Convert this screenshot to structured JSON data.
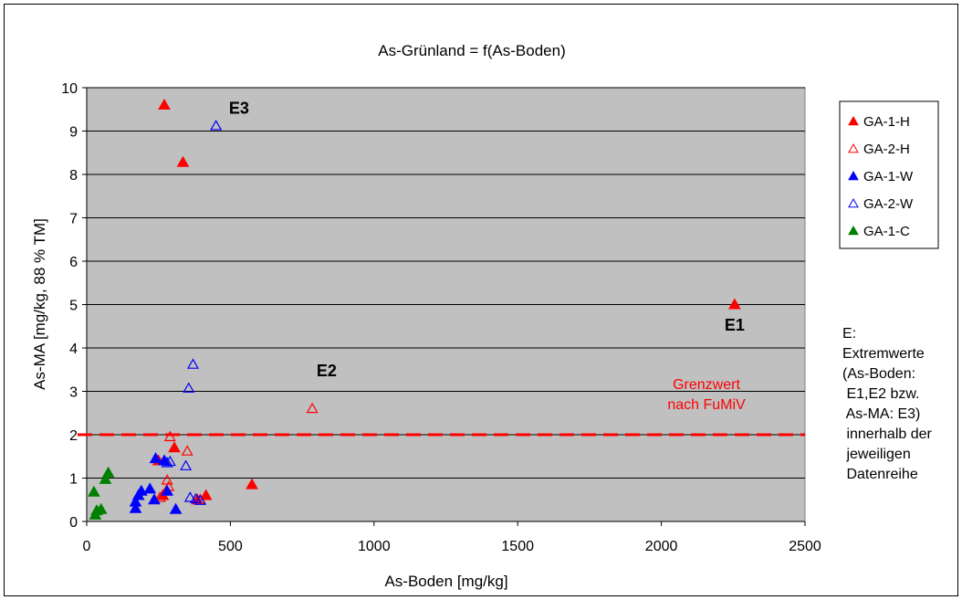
{
  "chart_data": {
    "type": "scatter",
    "title": "As-Grünland = f(As-Boden)",
    "xlabel": "As-Boden [mg/kg]",
    "ylabel": "As-MA [mg/kg, 88 % TM]",
    "xlim": [
      0,
      2500
    ],
    "ylim": [
      0,
      10
    ],
    "xticks": [
      0,
      500,
      1000,
      1500,
      2000,
      2500
    ],
    "yticks": [
      0,
      1,
      2,
      3,
      4,
      5,
      6,
      7,
      8,
      9,
      10
    ],
    "grid": "horizontal",
    "plot_background": "#c0c0c0",
    "legend_position": "right",
    "series": [
      {
        "name": "GA-1-H",
        "color": "#ff0000",
        "marker": "triangle-filled",
        "points": [
          [
            270,
            9.6
          ],
          [
            335,
            8.28
          ],
          [
            2255,
            5.0
          ],
          [
            305,
            1.7
          ],
          [
            250,
            1.4
          ],
          [
            575,
            0.85
          ],
          [
            265,
            0.6
          ],
          [
            415,
            0.6
          ],
          [
            385,
            0.5
          ]
        ]
      },
      {
        "name": "GA-2-H",
        "color": "#ff0000",
        "marker": "triangle-open",
        "points": [
          [
            785,
            2.6
          ],
          [
            290,
            1.95
          ],
          [
            350,
            1.62
          ],
          [
            255,
            0.55
          ],
          [
            280,
            0.95
          ],
          [
            285,
            0.8
          ],
          [
            395,
            0.5
          ]
        ]
      },
      {
        "name": "GA-1-W",
        "color": "#0000ff",
        "marker": "triangle-filled",
        "points": [
          [
            240,
            1.45
          ],
          [
            220,
            0.75
          ],
          [
            190,
            0.7
          ],
          [
            180,
            0.6
          ],
          [
            170,
            0.45
          ],
          [
            170,
            0.3
          ],
          [
            235,
            0.5
          ],
          [
            280,
            0.7
          ],
          [
            310,
            0.28
          ],
          [
            270,
            1.4
          ]
        ]
      },
      {
        "name": "GA-2-W",
        "color": "#0000ff",
        "marker": "triangle-open",
        "points": [
          [
            450,
            9.12
          ],
          [
            370,
            3.62
          ],
          [
            355,
            3.07
          ],
          [
            345,
            1.28
          ],
          [
            290,
            1.38
          ],
          [
            280,
            1.35
          ],
          [
            360,
            0.55
          ],
          [
            380,
            0.52
          ],
          [
            395,
            0.48
          ]
        ]
      },
      {
        "name": "GA-1-C",
        "color": "#008000",
        "marker": "triangle-filled",
        "points": [
          [
            75,
            1.12
          ],
          [
            65,
            0.97
          ],
          [
            25,
            0.68
          ],
          [
            50,
            0.28
          ],
          [
            35,
            0.25
          ],
          [
            30,
            0.15
          ]
        ]
      }
    ],
    "reference_line": {
      "y": 2.0,
      "color": "#ff0000",
      "style": "dashed",
      "label_lines": [
        "Grenzwert",
        "nach FuMiV"
      ]
    },
    "annotations": [
      {
        "text": "E3",
        "x": 530,
        "y": 9.4
      },
      {
        "text": "E2",
        "x": 835,
        "y": 3.35
      },
      {
        "text": "E1",
        "x": 2255,
        "y": 4.4
      }
    ],
    "side_note_lines": [
      "E:",
      "Extremwerte",
      "(As-Boden:",
      " E1,E2 bzw.",
      " As-MA: E3)",
      " innerhalb der",
      " jeweiligen",
      " Datenreihe"
    ]
  }
}
